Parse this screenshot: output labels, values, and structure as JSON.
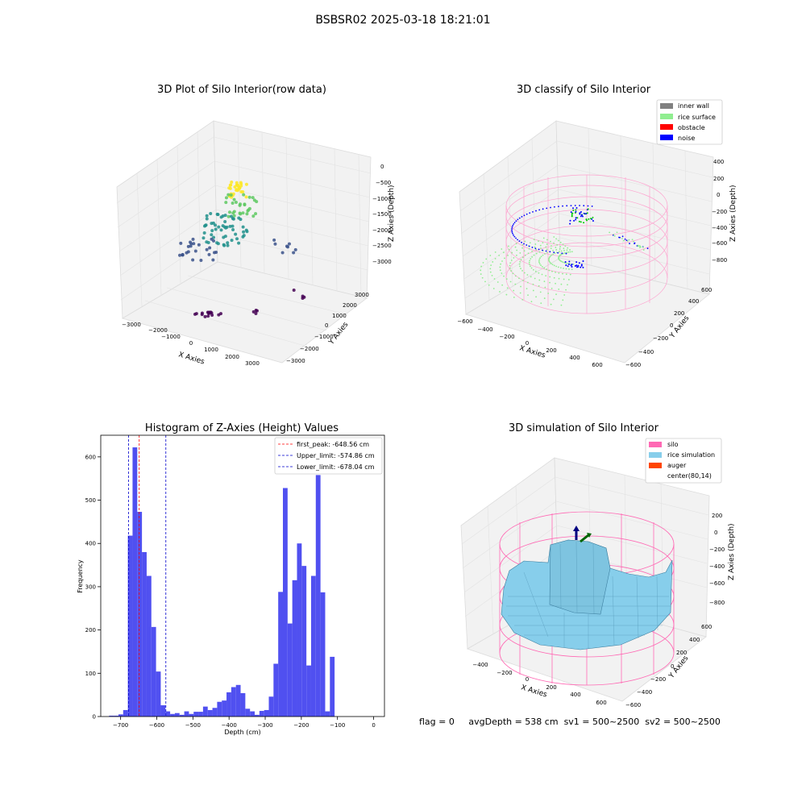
{
  "figure_title": "BSBSR02 2025-03-18 18:21:01",
  "status_line": {
    "flag": "flag = 0",
    "avg_depth": "avgDepth = 538 cm",
    "sv1": "sv1 = 500~2500",
    "sv2": "sv2 = 500~2500"
  },
  "colors": {
    "histogram_bar": "#5050f0",
    "first_peak_line": "#ff0000",
    "limit_line": "#0000cc",
    "inner_wall": "#808080",
    "rice_surface": "#90ee90",
    "obstacle": "#ff0000",
    "noise": "#0000ff",
    "silo": "#ff69b4",
    "rice_simulation": "#87ceeb",
    "auger": "#ff4500"
  },
  "chart_data": [
    {
      "type": "scatter",
      "projection": "3d",
      "title": "3D Plot of Silo Interior(row data)",
      "xlabel": "X Axies",
      "ylabel": "Y Axies",
      "zlabel": "Z Axies (Depth)",
      "x_ticks": [
        "−3000",
        "−2000",
        "−1000",
        "0",
        "1000",
        "2000",
        "3000"
      ],
      "y_ticks": [
        "−3000",
        "−2000",
        "−1000",
        "0",
        "1000",
        "2000",
        "3000"
      ],
      "z_ticks": [
        "0",
        "−500",
        "−1000",
        "−1500",
        "−2000",
        "−2500",
        "−3000"
      ],
      "colormap": "viridis"
    },
    {
      "type": "scatter",
      "projection": "3d",
      "title": "3D classify of Silo Interior",
      "xlabel": "X Axies",
      "ylabel": "Y Axies",
      "zlabel": "Z Axies (Depth)",
      "x_ticks": [
        "−600",
        "−400",
        "−200",
        "0",
        "200",
        "400",
        "600"
      ],
      "y_ticks": [
        "−600",
        "−400",
        "−200",
        "0",
        "200",
        "400",
        "600"
      ],
      "z_ticks": [
        "400",
        "200",
        "0",
        "−200",
        "−400",
        "−600",
        "−800"
      ],
      "legend": [
        "inner wall",
        "rice surface",
        "obstacle",
        "noise"
      ],
      "legend_position": "top-right"
    },
    {
      "type": "bar",
      "title": "Histogram of Z-Axies (Height) Values",
      "xlabel": "Depth (cm)",
      "ylabel": "Frequency",
      "xlim": [
        -755,
        30
      ],
      "ylim": [
        0,
        650
      ],
      "x_ticks": [
        "−700",
        "−600",
        "−500",
        "−400",
        "−300",
        "−200",
        "−100",
        "0"
      ],
      "y_ticks": [
        "0",
        "100",
        "200",
        "300",
        "400",
        "500",
        "600"
      ],
      "bin_start": -732,
      "bin_width": 13,
      "values": [
        2,
        2,
        5,
        15,
        418,
        622,
        473,
        380,
        325,
        207,
        104,
        26,
        12,
        6,
        8,
        4,
        12,
        6,
        11,
        11,
        23,
        15,
        20,
        34,
        37,
        56,
        68,
        73,
        54,
        18,
        12,
        4,
        13,
        15,
        46,
        122,
        288,
        528,
        215,
        315,
        400,
        348,
        118,
        325,
        558,
        287,
        12,
        138
      ],
      "vlines": [
        {
          "label": "first_peak: -648.56 cm",
          "x": -648.56,
          "style": "red-dashed"
        },
        {
          "label": "Upper_limit: -574.86 cm",
          "x": -574.86,
          "style": "blue-dashed"
        },
        {
          "label": "Lower_limit: -678.04 cm",
          "x": -678.04,
          "style": "blue-dashed"
        }
      ],
      "legend_position": "top-right"
    },
    {
      "type": "surface",
      "projection": "3d",
      "title": "3D simulation of Silo Interior",
      "xlabel": "X Axies",
      "ylabel": "Y Axies",
      "zlabel": "Z Axies (Depth)",
      "x_ticks": [
        "−400",
        "−200",
        "0",
        "200",
        "400",
        "600"
      ],
      "y_ticks": [
        "−600",
        "−400",
        "−200",
        "0",
        "200",
        "400",
        "600"
      ],
      "z_ticks": [
        "200",
        "0",
        "−200",
        "−400",
        "−600",
        "−800"
      ],
      "legend": [
        "silo",
        "rice simulation",
        "auger",
        "center(80,14)"
      ],
      "legend_position": "top-right"
    }
  ]
}
